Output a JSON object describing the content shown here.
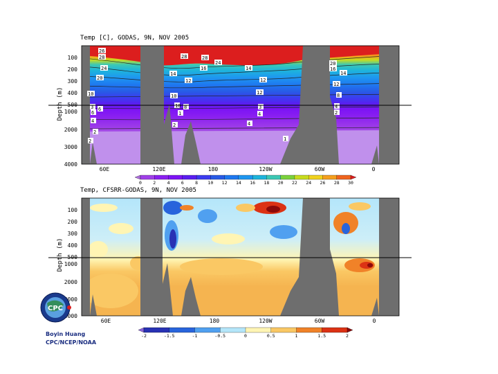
{
  "chart_data": [
    {
      "type": "heatmap",
      "title": "Temp [C], GODAS, 9N, NOV 2005",
      "ylabel": "Depth (m)",
      "xticks": [
        "60E",
        "120E",
        "180",
        "120W",
        "60W",
        "0"
      ],
      "yticks": [
        "100",
        "200",
        "300",
        "400",
        "500",
        "1000",
        "2000",
        "3000",
        "4000"
      ],
      "y_range": [
        0,
        4000
      ],
      "y_scale": "stretched above 500 m",
      "reference_line_depth": 500,
      "colorbar": {
        "levels": [
          "0",
          "2",
          "4",
          "6",
          "8",
          "10",
          "12",
          "14",
          "16",
          "18",
          "20",
          "22",
          "24",
          "26",
          "28",
          "30"
        ],
        "colors": [
          "#b070e0",
          "#a040e8",
          "#8a20f0",
          "#7d14f5",
          "#5a1ef0",
          "#3c3cf0",
          "#285ae6",
          "#1e78f0",
          "#1e96f0",
          "#1eb4dc",
          "#3cc8b4",
          "#7ad23c",
          "#c8dc1e",
          "#f0d21e",
          "#f5a01e",
          "#f0641e",
          "#dc1e1e"
        ]
      },
      "contour_labels": [
        "26",
        "28",
        "24",
        "20",
        "28",
        "28",
        "24",
        "16",
        "14",
        "12",
        "12",
        "14",
        "12",
        "10",
        "20",
        "16",
        "14",
        "12",
        "10",
        "8",
        "6",
        "4",
        "2",
        "10",
        "8",
        "6",
        "4",
        "3",
        "2",
        "1",
        "2",
        "4",
        "4",
        "3",
        "2",
        "1"
      ],
      "masked_land_x_ranges_deg": [
        [
          0,
          8
        ],
        [
          102,
          118
        ],
        [
          285,
          305
        ],
        [
          353,
          365
        ]
      ]
    },
    {
      "type": "heatmap",
      "title": "Temp, CFSRR-GODAS, 9N, NOV 2005",
      "ylabel": "Depth (m)",
      "xticks": [
        "60E",
        "120E",
        "180",
        "120W",
        "60W",
        "0"
      ],
      "yticks": [
        "100",
        "200",
        "300",
        "400",
        "500",
        "1000",
        "2000",
        "3000",
        "4000"
      ],
      "y_range": [
        0,
        4000
      ],
      "reference_line_depth": 500,
      "colorbar": {
        "levels": [
          "-2",
          "-1.5",
          "-1",
          "-0.5",
          "0",
          "0.5",
          "1",
          "1.5",
          "2"
        ],
        "colors": [
          "#8a64dc",
          "#2832b4",
          "#2864dc",
          "#50a0f0",
          "#b4e6fa",
          "#fff5b4",
          "#fac864",
          "#f08228",
          "#dc3214",
          "#8c0a0a"
        ]
      },
      "masked_land_x_ranges_deg": [
        [
          0,
          8
        ],
        [
          102,
          118
        ],
        [
          285,
          305
        ],
        [
          353,
          365
        ]
      ]
    }
  ],
  "credit": {
    "author": "Boyin Huang",
    "org": "CPC/NCEP/NOAA"
  },
  "logo": {
    "text": "CLIMATE PREDICTION CENTER",
    "center": "CPC"
  }
}
